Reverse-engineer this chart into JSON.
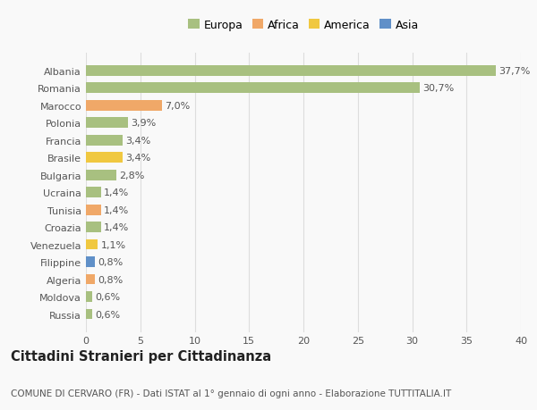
{
  "categories": [
    "Russia",
    "Moldova",
    "Algeria",
    "Filippine",
    "Venezuela",
    "Croazia",
    "Tunisia",
    "Ucraina",
    "Bulgaria",
    "Brasile",
    "Francia",
    "Polonia",
    "Marocco",
    "Romania",
    "Albania"
  ],
  "values": [
    0.6,
    0.6,
    0.8,
    0.8,
    1.1,
    1.4,
    1.4,
    1.4,
    2.8,
    3.4,
    3.4,
    3.9,
    7.0,
    30.7,
    37.7
  ],
  "labels": [
    "0,6%",
    "0,6%",
    "0,8%",
    "0,8%",
    "1,1%",
    "1,4%",
    "1,4%",
    "1,4%",
    "2,8%",
    "3,4%",
    "3,4%",
    "3,9%",
    "7,0%",
    "30,7%",
    "37,7%"
  ],
  "colors": [
    "#a8c080",
    "#a8c080",
    "#f0a868",
    "#6090c8",
    "#f0c840",
    "#a8c080",
    "#f0a868",
    "#a8c080",
    "#a8c080",
    "#f0c840",
    "#a8c080",
    "#a8c080",
    "#f0a868",
    "#a8c080",
    "#a8c080"
  ],
  "legend_labels": [
    "Europa",
    "Africa",
    "America",
    "Asia"
  ],
  "legend_colors": [
    "#a8c080",
    "#f0a868",
    "#f0c840",
    "#6090c8"
  ],
  "title": "Cittadini Stranieri per Cittadinanza",
  "subtitle": "COMUNE DI CERVARO (FR) - Dati ISTAT al 1° gennaio di ogni anno - Elaborazione TUTTITALIA.IT",
  "xlim": [
    0,
    40
  ],
  "xticks": [
    0,
    5,
    10,
    15,
    20,
    25,
    30,
    35,
    40
  ],
  "background_color": "#f9f9f9",
  "grid_color": "#dddddd",
  "bar_height": 0.6,
  "label_fontsize": 8,
  "title_fontsize": 10.5,
  "subtitle_fontsize": 7.5,
  "tick_fontsize": 8,
  "legend_fontsize": 9
}
